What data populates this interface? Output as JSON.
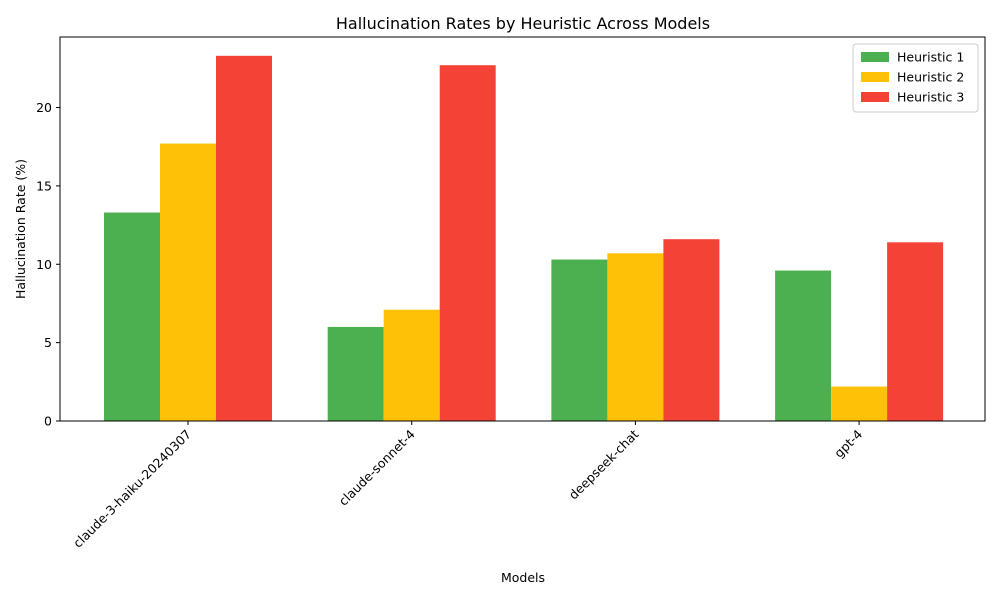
{
  "chart_data": {
    "type": "bar",
    "title": "Hallucination Rates by Heuristic Across Models",
    "xlabel": "Models",
    "ylabel": "Hallucination Rate (%)",
    "categories": [
      "claude-3-haiku-20240307",
      "claude-sonnet-4",
      "deepseek-chat",
      "gpt-4"
    ],
    "series": [
      {
        "name": "Heuristic 1",
        "color": "#4caf50",
        "values": [
          13.3,
          6.0,
          10.3,
          9.6
        ]
      },
      {
        "name": "Heuristic 2",
        "color": "#ffc107",
        "values": [
          17.7,
          7.1,
          10.7,
          2.2
        ]
      },
      {
        "name": "Heuristic 3",
        "color": "#f44336",
        "values": [
          23.3,
          22.7,
          11.6,
          11.4
        ]
      }
    ],
    "ylim": [
      0,
      24.5
    ],
    "yticks": [
      0,
      5,
      10,
      15,
      20
    ],
    "grid": false,
    "legend_position": "top-right"
  }
}
